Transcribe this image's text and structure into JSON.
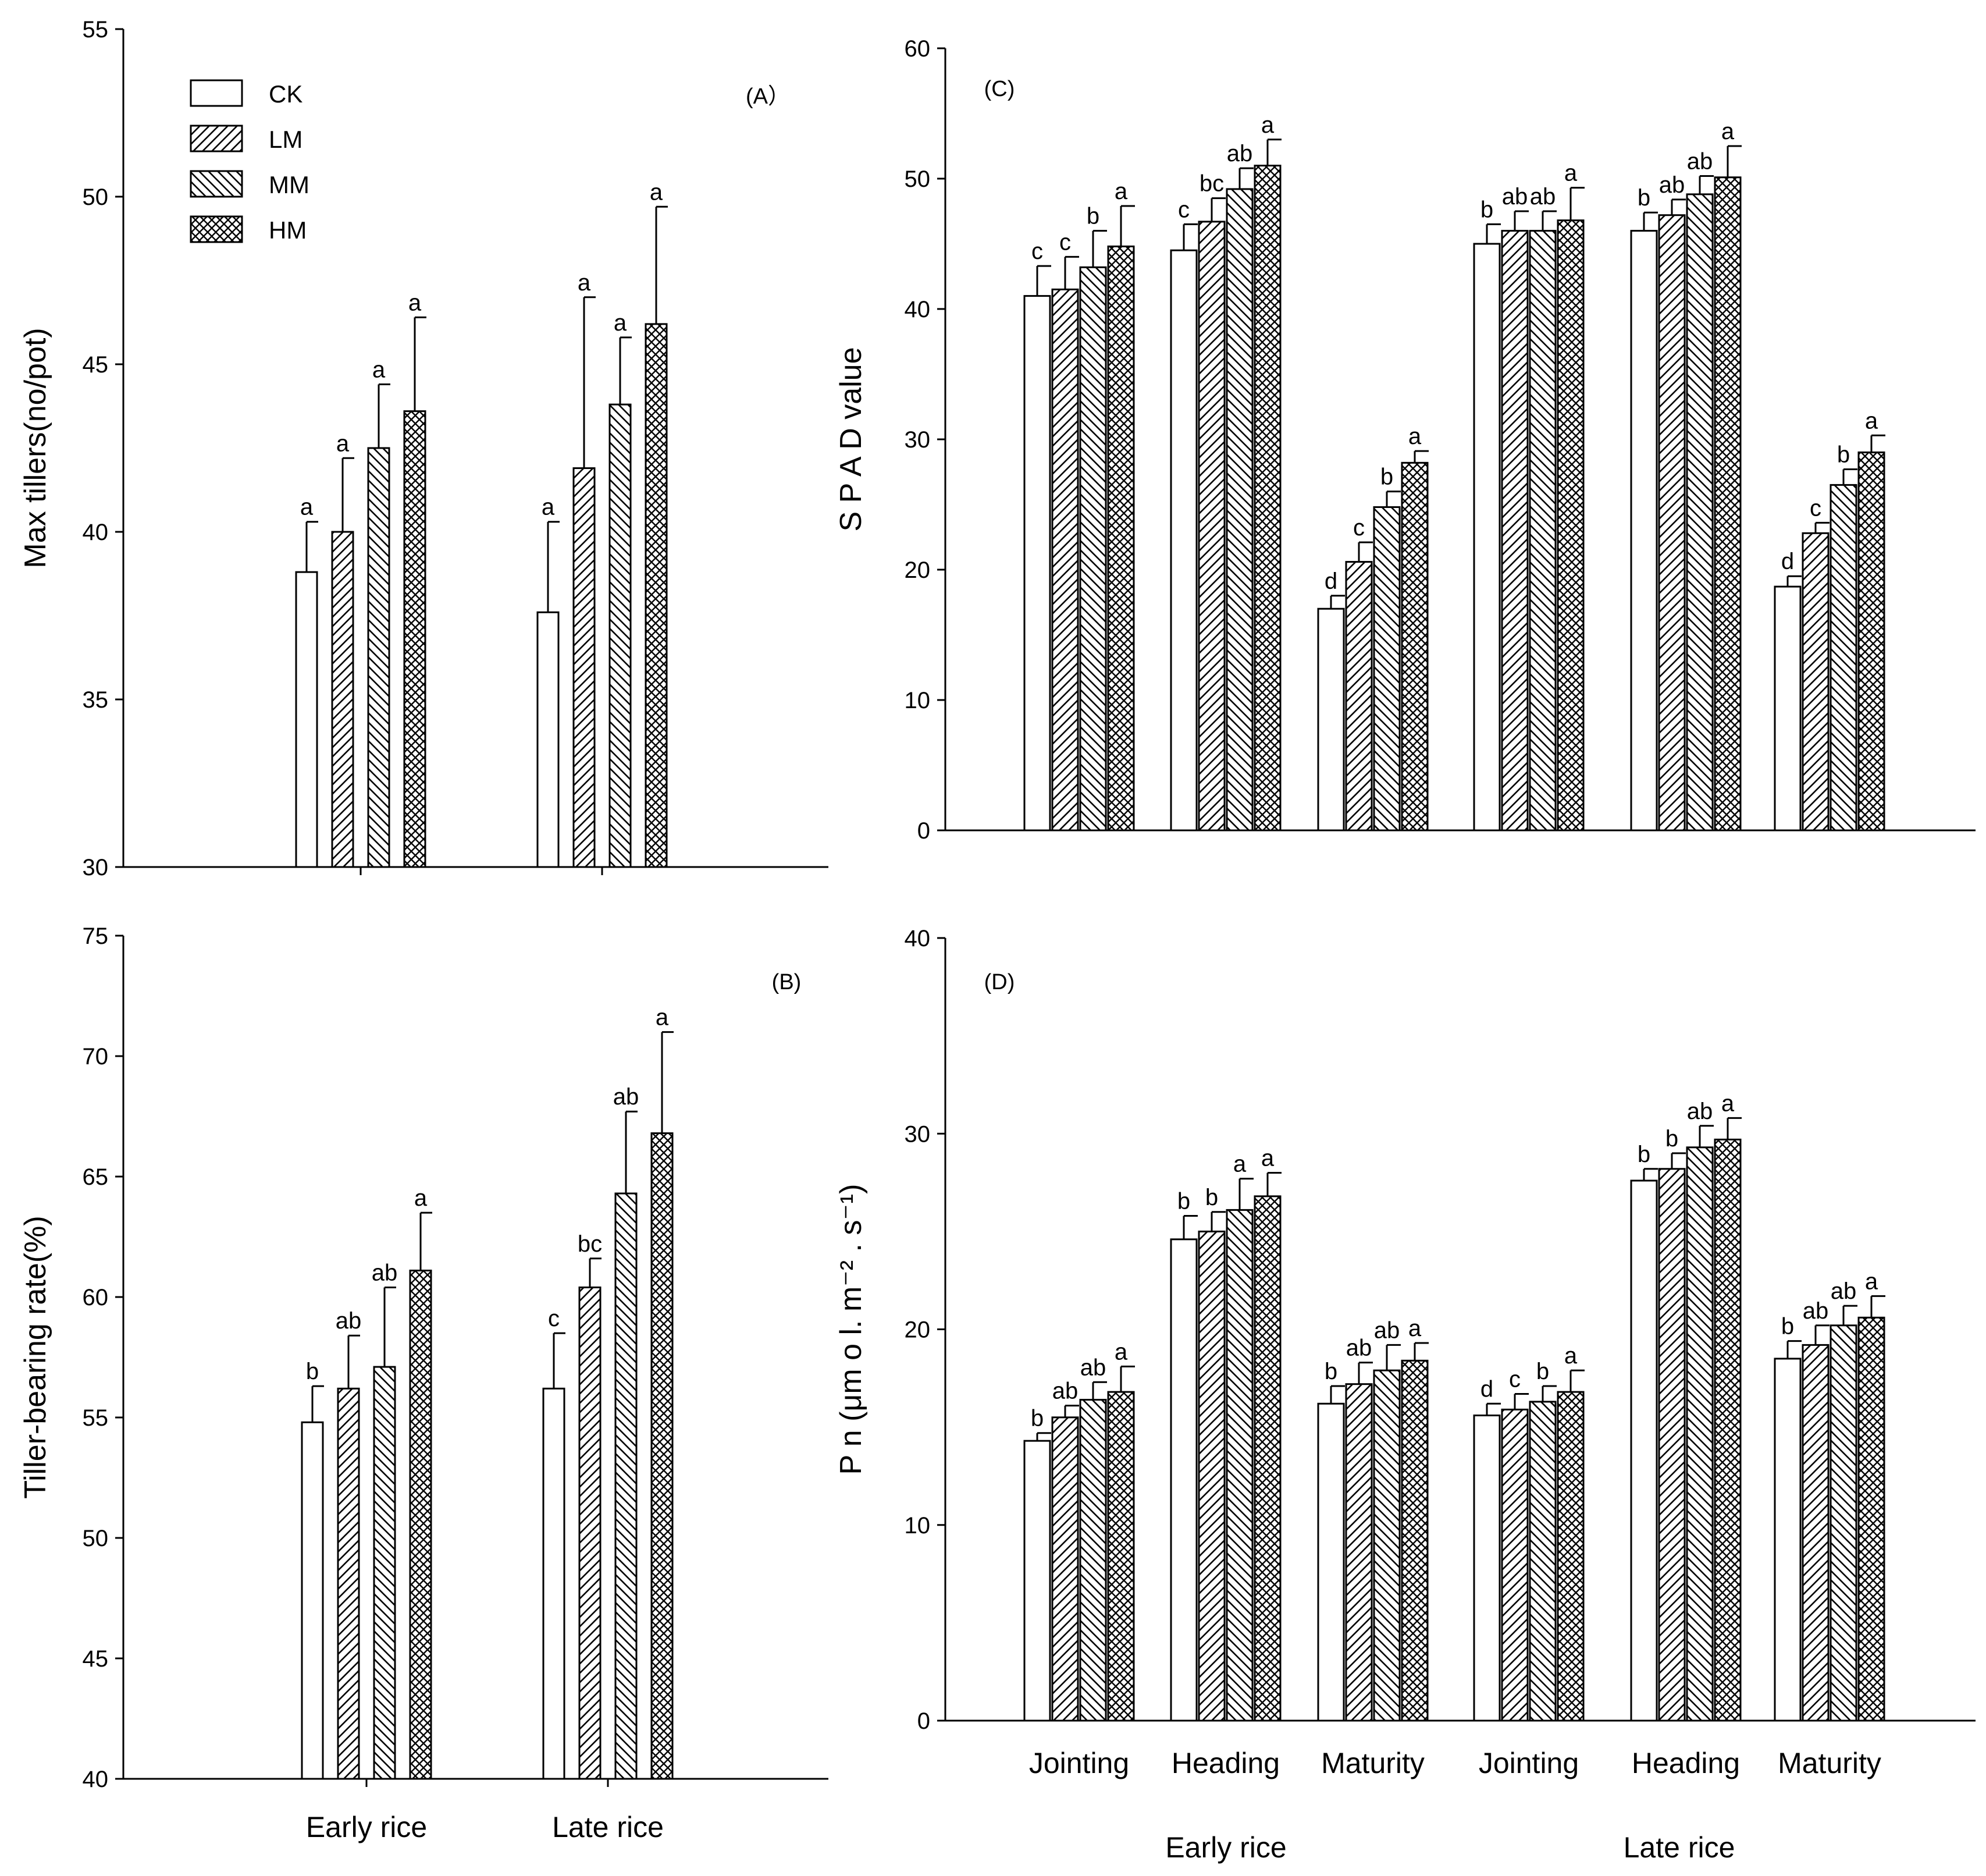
{
  "figure": {
    "treatments": [
      "CK",
      "LM",
      "MM",
      "HM"
    ],
    "patterns": [
      "white",
      "diag-right",
      "diag-left",
      "crosshatch"
    ]
  },
  "chart_data": [
    {
      "id": "A",
      "type": "bar",
      "panel_label": "(A）",
      "ylabel": "Max tillers(no/pot)",
      "ylim": [
        30,
        55
      ],
      "yticks": [
        30,
        35,
        40,
        45,
        50,
        55
      ],
      "categories": [
        "Early rice",
        "Late rice"
      ],
      "group_labels": [],
      "legend": true,
      "series": [
        {
          "name": "CK",
          "values": [
            38.8,
            37.6
          ],
          "errors": [
            1.5,
            2.7
          ],
          "letters": [
            "a",
            "a"
          ]
        },
        {
          "name": "LM",
          "values": [
            40.0,
            41.9
          ],
          "errors": [
            2.2,
            5.1
          ],
          "letters": [
            "a",
            "a"
          ]
        },
        {
          "name": "MM",
          "values": [
            42.5,
            43.8
          ],
          "errors": [
            1.9,
            2.0
          ],
          "letters": [
            "a",
            "a"
          ]
        },
        {
          "name": "HM",
          "values": [
            43.6,
            46.2
          ],
          "errors": [
            2.8,
            3.5
          ],
          "letters": [
            "a",
            "a"
          ]
        }
      ]
    },
    {
      "id": "B",
      "type": "bar",
      "panel_label": "(B)",
      "ylabel": "Tiller-bearing rate(%)",
      "ylim": [
        40,
        75
      ],
      "yticks": [
        40,
        45,
        50,
        55,
        60,
        65,
        70,
        75
      ],
      "categories": [
        "Early rice",
        "Late rice"
      ],
      "group_labels": [],
      "legend": false,
      "series": [
        {
          "name": "CK",
          "values": [
            54.8,
            56.2
          ],
          "errors": [
            1.5,
            2.3
          ],
          "letters": [
            "b",
            "c"
          ]
        },
        {
          "name": "LM",
          "values": [
            56.2,
            60.4
          ],
          "errors": [
            2.2,
            1.2
          ],
          "letters": [
            "ab",
            "bc"
          ]
        },
        {
          "name": "MM",
          "values": [
            57.1,
            64.3
          ],
          "errors": [
            3.3,
            3.4
          ],
          "letters": [
            "ab",
            "ab"
          ]
        },
        {
          "name": "HM",
          "values": [
            61.1,
            66.8
          ],
          "errors": [
            2.4,
            4.2
          ],
          "letters": [
            "a",
            "a"
          ]
        }
      ]
    },
    {
      "id": "C",
      "type": "bar",
      "panel_label": "(C)",
      "ylabel": "S P A D  value",
      "ylim": [
        0,
        60
      ],
      "yticks": [
        0,
        10,
        20,
        30,
        40,
        50,
        60
      ],
      "categories": [
        "Jointing",
        "Heading",
        "Maturity",
        "Jointing",
        "Heading",
        "Maturity"
      ],
      "group_labels": [],
      "legend": false,
      "series": [
        {
          "name": "CK",
          "values": [
            41.0,
            44.5,
            17.0,
            45.0,
            46.0,
            18.7
          ],
          "errors": [
            2.3,
            2.0,
            1.0,
            1.5,
            1.4,
            0.8
          ],
          "letters": [
            "c",
            "c",
            "d",
            "b",
            "b",
            "d"
          ]
        },
        {
          "name": "LM",
          "values": [
            41.5,
            46.7,
            20.6,
            46.0,
            47.2,
            22.8
          ],
          "errors": [
            2.5,
            1.8,
            1.5,
            1.5,
            1.2,
            0.8
          ],
          "letters": [
            "c",
            "bc",
            "c",
            "ab",
            "ab",
            "c"
          ]
        },
        {
          "name": "MM",
          "values": [
            43.2,
            49.2,
            24.8,
            46.0,
            48.8,
            26.5
          ],
          "errors": [
            2.8,
            1.6,
            1.2,
            1.5,
            1.4,
            1.2
          ],
          "letters": [
            "b",
            "ab",
            "b",
            "ab",
            "ab",
            "b"
          ]
        },
        {
          "name": "HM",
          "values": [
            44.8,
            51.0,
            28.2,
            46.8,
            50.1,
            29.0
          ],
          "errors": [
            3.1,
            2.0,
            0.9,
            2.5,
            2.4,
            1.3
          ],
          "letters": [
            "a",
            "a",
            "a",
            "a",
            "a",
            "a"
          ]
        }
      ]
    },
    {
      "id": "D",
      "type": "bar",
      "panel_label": "(D)",
      "ylabel": "P n  (μm o l. m⁻² . s⁻¹)",
      "ylim": [
        0,
        40
      ],
      "yticks": [
        0,
        10,
        20,
        30,
        40
      ],
      "categories": [
        "Jointing",
        "Heading",
        "Maturity",
        "Jointing",
        "Heading",
        "Maturity"
      ],
      "group_labels": [
        "Early rice",
        "Late rice"
      ],
      "legend": false,
      "series": [
        {
          "name": "CK",
          "values": [
            14.3,
            24.6,
            16.2,
            15.6,
            27.6,
            18.5
          ],
          "errors": [
            0.4,
            1.2,
            0.9,
            0.6,
            0.6,
            0.9
          ],
          "letters": [
            "b",
            "b",
            "b",
            "d",
            "b",
            "b"
          ]
        },
        {
          "name": "LM",
          "values": [
            15.5,
            25.0,
            17.2,
            15.9,
            28.2,
            19.2
          ],
          "errors": [
            0.6,
            1.0,
            1.1,
            0.8,
            0.8,
            1.0
          ],
          "letters": [
            "ab",
            "b",
            "ab",
            "c",
            "b",
            "ab"
          ]
        },
        {
          "name": "MM",
          "values": [
            16.4,
            26.1,
            17.9,
            16.3,
            29.3,
            20.2
          ],
          "errors": [
            0.9,
            1.6,
            1.3,
            0.8,
            1.1,
            1.0
          ],
          "letters": [
            "ab",
            "a",
            "ab",
            "b",
            "ab",
            "ab"
          ]
        },
        {
          "name": "HM",
          "values": [
            16.8,
            26.8,
            18.4,
            16.8,
            29.7,
            20.6
          ],
          "errors": [
            1.3,
            1.2,
            0.9,
            1.1,
            1.1,
            1.1
          ],
          "letters": [
            "a",
            "a",
            "a",
            "a",
            "a",
            "a"
          ]
        }
      ]
    }
  ]
}
